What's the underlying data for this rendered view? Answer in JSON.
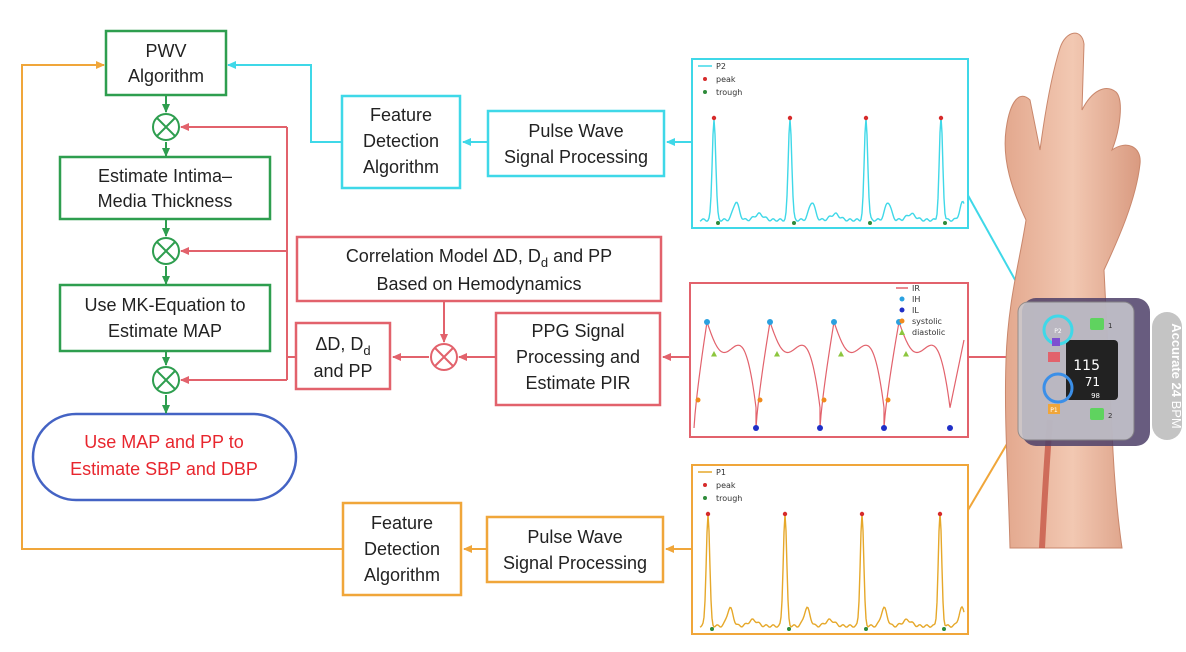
{
  "colors": {
    "green": "#2e9e4f",
    "cyan": "#3fd8e8",
    "red": "#e2626c",
    "orange": "#f0a63a",
    "blue": "#4463c4",
    "final_text": "#e8262e"
  },
  "flow": {
    "pwv_algorithm": [
      "PWV",
      "Algorithm"
    ],
    "estimate_imt": [
      "Estimate Intima–",
      "Media Thickness"
    ],
    "mk_equation": [
      "Use MK-Equation to",
      "Estimate MAP"
    ],
    "final_estimate": [
      "Use MAP and PP to",
      "Estimate SBP and DBP"
    ]
  },
  "top_row": {
    "feature_detection": [
      "Feature",
      "Detection",
      "Algorithm"
    ],
    "signal_processing": [
      "Pulse Wave",
      "Signal Processing"
    ]
  },
  "middle_row": {
    "correlation_model": {
      "line1_prefix": "Correlation Model ΔD, D",
      "line1_sub": "d",
      "line1_suffix": " and PP",
      "line2": "Based on Hemodynamics"
    },
    "dd_pp": {
      "line1_prefix": "ΔD, D",
      "line1_sub": "d",
      "line2": "and PP"
    },
    "ppg_processing": [
      "PPG Signal",
      "Processing and",
      "Estimate PIR"
    ]
  },
  "bottom_row": {
    "feature_detection": [
      "Feature",
      "Detection",
      "Algorithm"
    ],
    "signal_processing": [
      "Pulse Wave",
      "Signal Processing"
    ]
  },
  "plots": {
    "p2": {
      "legend": [
        "P2",
        "peak",
        "trough"
      ]
    },
    "ppg": {
      "legend": [
        "IR",
        "IH",
        "IL",
        "systolic",
        "diastolic"
      ]
    },
    "p1": {
      "legend": [
        "P1",
        "peak",
        "trough"
      ]
    }
  },
  "device": {
    "badge": {
      "bold": "Accurate 24",
      "rest": " BPM"
    },
    "screen_values": [
      "115",
      "71",
      "98"
    ],
    "sensor_labels": [
      "P2",
      "P1",
      "1",
      "2"
    ]
  }
}
